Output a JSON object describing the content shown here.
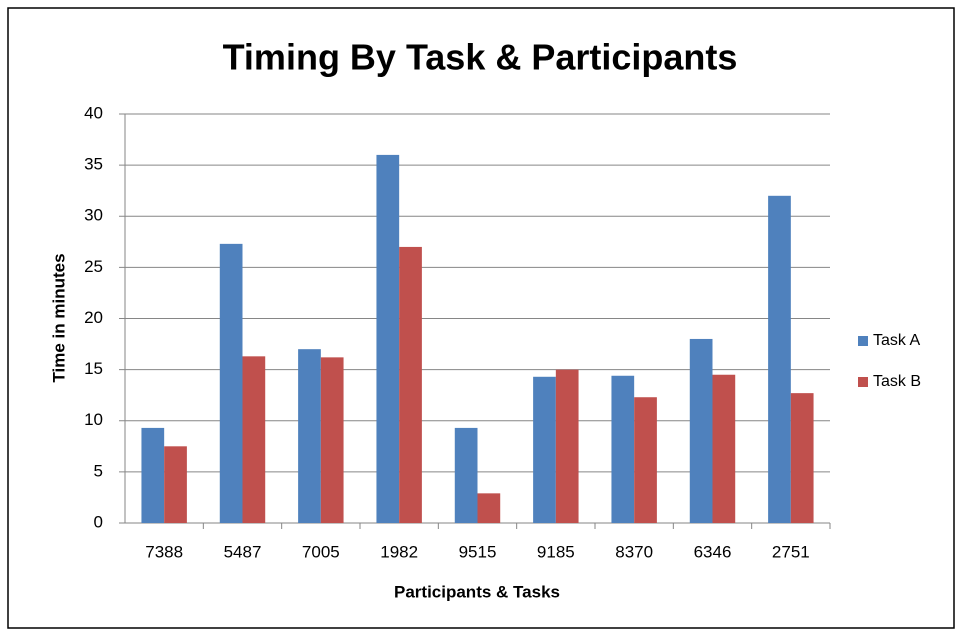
{
  "chart_data": {
    "type": "bar",
    "title": "Timing By Task & Participants",
    "x_label": "Participants  & Tasks",
    "y_label": "Time in minutes",
    "categories": [
      "7388",
      "5487",
      "7005",
      "1982",
      "9515",
      "9185",
      "8370",
      "6346",
      "2751"
    ],
    "series": [
      {
        "name": "Task A",
        "color": "#4f81bd",
        "values": [
          9.3,
          27.3,
          17,
          36,
          9.3,
          14.3,
          14.4,
          18,
          32
        ]
      },
      {
        "name": "Task B",
        "color": "#c0504d",
        "values": [
          7.5,
          16.3,
          16.2,
          27,
          2.9,
          15,
          12.3,
          14.5,
          12.7
        ]
      }
    ],
    "ylim": [
      0,
      40
    ],
    "yticks": [
      0,
      5,
      10,
      15,
      20,
      25,
      30,
      35,
      40
    ],
    "grid": true,
    "legend": "right"
  }
}
